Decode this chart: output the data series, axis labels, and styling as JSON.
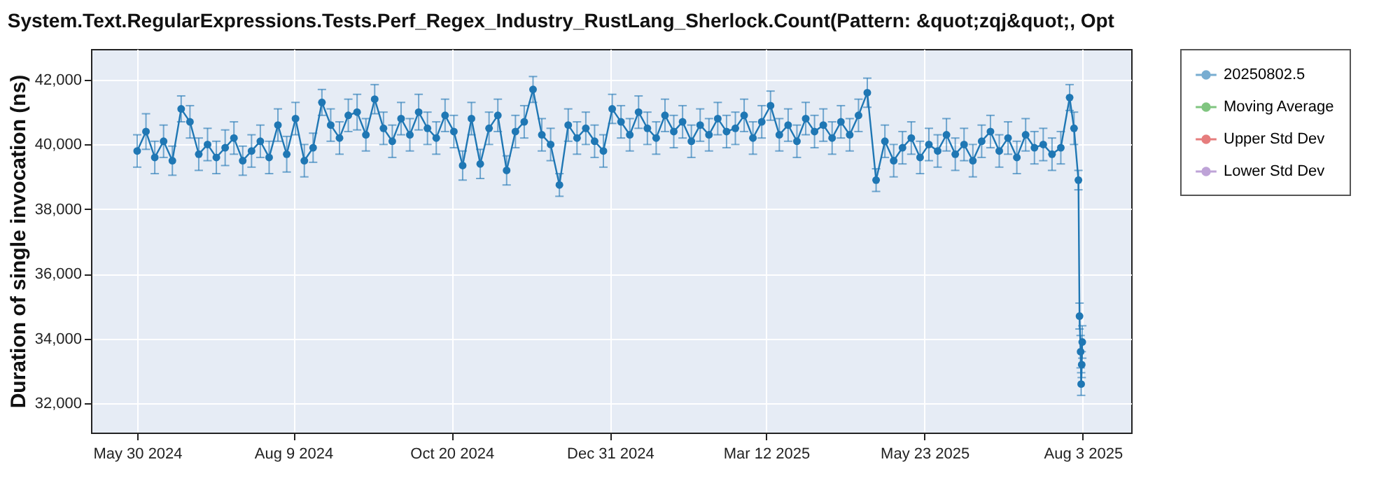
{
  "chart_data": {
    "type": "line",
    "title": "System.Text.RegularExpressions.Tests.Perf_Regex_Industry_RustLang_Sherlock.Count(Pattern: &quot;zqj&quot;, Opt",
    "ylabel": "Duration of single invocation (ns)",
    "x": [
      "2024-05-30",
      "2024-06-03",
      "2024-06-07",
      "2024-06-11",
      "2024-06-15",
      "2024-06-19",
      "2024-06-23",
      "2024-06-27",
      "2024-07-01",
      "2024-07-05",
      "2024-07-09",
      "2024-07-13",
      "2024-07-17",
      "2024-07-21",
      "2024-07-25",
      "2024-07-29",
      "2024-08-02",
      "2024-08-06",
      "2024-08-10",
      "2024-08-14",
      "2024-08-18",
      "2024-08-22",
      "2024-08-26",
      "2024-08-30",
      "2024-09-03",
      "2024-09-07",
      "2024-09-11",
      "2024-09-15",
      "2024-09-19",
      "2024-09-23",
      "2024-09-27",
      "2024-10-01",
      "2024-10-05",
      "2024-10-09",
      "2024-10-13",
      "2024-10-17",
      "2024-10-21",
      "2024-10-25",
      "2024-10-29",
      "2024-11-02",
      "2024-11-06",
      "2024-11-10",
      "2024-11-14",
      "2024-11-18",
      "2024-11-22",
      "2024-11-26",
      "2024-11-30",
      "2024-12-04",
      "2024-12-08",
      "2024-12-12",
      "2024-12-16",
      "2024-12-20",
      "2024-12-24",
      "2024-12-28",
      "2025-01-01",
      "2025-01-05",
      "2025-01-09",
      "2025-01-13",
      "2025-01-17",
      "2025-01-21",
      "2025-01-25",
      "2025-01-29",
      "2025-02-02",
      "2025-02-06",
      "2025-02-10",
      "2025-02-14",
      "2025-02-18",
      "2025-02-22",
      "2025-02-26",
      "2025-03-02",
      "2025-03-06",
      "2025-03-10",
      "2025-03-14",
      "2025-03-18",
      "2025-03-22",
      "2025-03-26",
      "2025-03-30",
      "2025-04-03",
      "2025-04-07",
      "2025-04-11",
      "2025-04-15",
      "2025-04-19",
      "2025-04-23",
      "2025-04-27",
      "2025-05-01",
      "2025-05-05",
      "2025-05-09",
      "2025-05-13",
      "2025-05-17",
      "2025-05-21",
      "2025-05-25",
      "2025-05-29",
      "2025-06-02",
      "2025-06-06",
      "2025-06-10",
      "2025-06-14",
      "2025-06-18",
      "2025-06-22",
      "2025-06-26",
      "2025-06-30",
      "2025-07-04",
      "2025-07-08",
      "2025-07-12",
      "2025-07-16",
      "2025-07-20",
      "2025-07-24",
      "2025-07-28",
      "2025-07-30",
      "2025-08-01",
      "2025-08-01T12:00",
      "2025-08-02",
      "2025-08-02T06:00",
      "2025-08-02T12:00",
      "2025-08-02T18:00"
    ],
    "series": [
      {
        "name": "20250802.5",
        "color": "#1f77b4",
        "values": [
          39800,
          40400,
          39600,
          40100,
          39500,
          41100,
          40700,
          39700,
          40000,
          39600,
          39900,
          40200,
          39500,
          39800,
          40100,
          39600,
          40600,
          39700,
          40800,
          39500,
          39900,
          41300,
          40600,
          40200,
          40900,
          41000,
          40300,
          41400,
          40500,
          40100,
          40800,
          40300,
          41000,
          40500,
          40200,
          40900,
          40400,
          39350,
          40800,
          39400,
          40500,
          40900,
          39200,
          40400,
          40700,
          41700,
          40300,
          40000,
          38750,
          40600,
          40200,
          40500,
          40100,
          39800,
          41100,
          40700,
          40300,
          41000,
          40500,
          40200,
          40900,
          40400,
          40700,
          40100,
          40600,
          40300,
          40800,
          40400,
          40500,
          40900,
          40200,
          40700,
          41200,
          40300,
          40600,
          40100,
          40800,
          40400,
          40600,
          40200,
          40700,
          40300,
          40900,
          41600,
          38900,
          40100,
          39500,
          39900,
          40200,
          39600,
          40000,
          39800,
          40300,
          39700,
          40000,
          39500,
          40100,
          40400,
          39800,
          40200,
          39600,
          40300,
          39900,
          40000,
          39700,
          39900,
          41450,
          40500,
          38900,
          34700,
          33600,
          32600,
          33200,
          33900
        ],
        "errors": [
          500,
          550,
          500,
          500,
          450,
          400,
          500,
          500,
          500,
          500,
          550,
          500,
          450,
          500,
          500,
          500,
          500,
          550,
          500,
          500,
          450,
          400,
          500,
          500,
          500,
          550,
          500,
          450,
          500,
          500,
          500,
          500,
          550,
          500,
          500,
          500,
          500,
          450,
          500,
          450,
          500,
          500,
          450,
          500,
          500,
          400,
          500,
          500,
          350,
          500,
          500,
          500,
          500,
          500,
          450,
          500,
          500,
          500,
          500,
          500,
          500,
          500,
          500,
          500,
          500,
          500,
          500,
          500,
          500,
          500,
          500,
          500,
          450,
          500,
          500,
          500,
          500,
          500,
          500,
          500,
          500,
          500,
          500,
          450,
          350,
          500,
          500,
          500,
          500,
          500,
          500,
          500,
          500,
          500,
          500,
          500,
          500,
          500,
          500,
          500,
          500,
          500,
          500,
          500,
          500,
          500,
          400,
          500,
          300,
          400,
          500,
          350,
          400,
          500
        ]
      },
      {
        "name": "Moving Average",
        "color": "#2ca02c",
        "values": [
          null,
          null,
          null,
          null,
          null,
          null,
          null,
          null,
          null,
          null,
          null,
          null,
          null,
          null,
          null,
          null,
          null,
          null,
          null,
          null,
          null,
          null,
          null,
          null,
          null,
          null,
          null,
          null,
          null,
          null,
          null,
          null,
          null,
          null,
          null,
          null,
          null,
          null,
          null,
          null,
          null,
          null,
          null,
          null,
          null,
          null,
          null,
          null,
          null,
          null,
          null,
          null,
          null,
          null,
          null,
          null,
          null,
          null,
          null,
          null,
          null,
          null,
          null,
          null,
          null,
          null,
          null,
          null,
          null,
          null,
          null,
          null,
          null,
          null,
          null,
          null,
          null,
          null,
          null,
          null,
          null,
          null,
          null,
          null,
          null,
          null,
          null,
          null,
          null,
          null,
          null,
          null,
          null,
          null,
          null,
          null,
          null,
          null,
          null,
          null,
          null,
          null,
          null,
          null,
          null,
          null,
          null,
          null,
          null,
          null,
          null,
          null,
          null,
          null
        ]
      },
      {
        "name": "Upper Std Dev",
        "color": "#d62728",
        "values": [
          null,
          null,
          null,
          null,
          null,
          null,
          null,
          null,
          null,
          null,
          null,
          null,
          null,
          null,
          null,
          null,
          null,
          null,
          null,
          null,
          null,
          null,
          null,
          null,
          null,
          null,
          null,
          null,
          null,
          null,
          null,
          null,
          null,
          null,
          null,
          null,
          null,
          null,
          null,
          null,
          null,
          null,
          null,
          null,
          null,
          null,
          null,
          null,
          null,
          null,
          null,
          null,
          null,
          null,
          null,
          null,
          null,
          null,
          null,
          null,
          null,
          null,
          null,
          null,
          null,
          null,
          null,
          null,
          null,
          null,
          null,
          null,
          null,
          null,
          null,
          null,
          null,
          null,
          null,
          null,
          null,
          null,
          null,
          null,
          null,
          null,
          null,
          null,
          null,
          null,
          null,
          null,
          null,
          null,
          null,
          null,
          null,
          null,
          null,
          null,
          null,
          null,
          null,
          null,
          null,
          null,
          null,
          null,
          null,
          null,
          null,
          null,
          null,
          null
        ]
      },
      {
        "name": "Lower Std Dev",
        "color": "#9467bd",
        "values": [
          null,
          null,
          null,
          null,
          null,
          null,
          null,
          null,
          null,
          null,
          null,
          null,
          null,
          null,
          null,
          null,
          null,
          null,
          null,
          null,
          null,
          null,
          null,
          null,
          null,
          null,
          null,
          null,
          null,
          null,
          null,
          null,
          null,
          null,
          null,
          null,
          null,
          null,
          null,
          null,
          null,
          null,
          null,
          null,
          null,
          null,
          null,
          null,
          null,
          null,
          null,
          null,
          null,
          null,
          null,
          null,
          null,
          null,
          null,
          null,
          null,
          null,
          null,
          null,
          null,
          null,
          null,
          null,
          null,
          null,
          null,
          null,
          null,
          null,
          null,
          null,
          null,
          null,
          null,
          null,
          null,
          null,
          null,
          null,
          null,
          null,
          null,
          null,
          null,
          null,
          null,
          null,
          null,
          null,
          null,
          null,
          null,
          null,
          null,
          null,
          null,
          null,
          null,
          null,
          null,
          null,
          null,
          null,
          null,
          null,
          null,
          null,
          null,
          null
        ]
      }
    ],
    "xlim": [
      "2024-05-09",
      "2025-08-25"
    ],
    "xticks": [
      {
        "value": "2024-05-30",
        "label": "May 30 2024"
      },
      {
        "value": "2024-08-09",
        "label": "Aug 9 2024"
      },
      {
        "value": "2024-10-20",
        "label": "Oct 20 2024"
      },
      {
        "value": "2024-12-31",
        "label": "Dec 31 2024"
      },
      {
        "value": "2025-03-12",
        "label": "Mar 12 2025"
      },
      {
        "value": "2025-05-23",
        "label": "May 23 2025"
      },
      {
        "value": "2025-08-03",
        "label": "Aug 3 2025"
      }
    ],
    "ylim": [
      31100,
      42950
    ],
    "yticks": [
      {
        "value": 32000,
        "label": "32,000"
      },
      {
        "value": 34000,
        "label": "34,000"
      },
      {
        "value": 36000,
        "label": "36,000"
      },
      {
        "value": 38000,
        "label": "38,000"
      },
      {
        "value": 40000,
        "label": "40,000"
      },
      {
        "value": 42000,
        "label": "42,000"
      }
    ],
    "grid": true,
    "legend": "right",
    "marker": "circle",
    "line_style": "solid"
  }
}
